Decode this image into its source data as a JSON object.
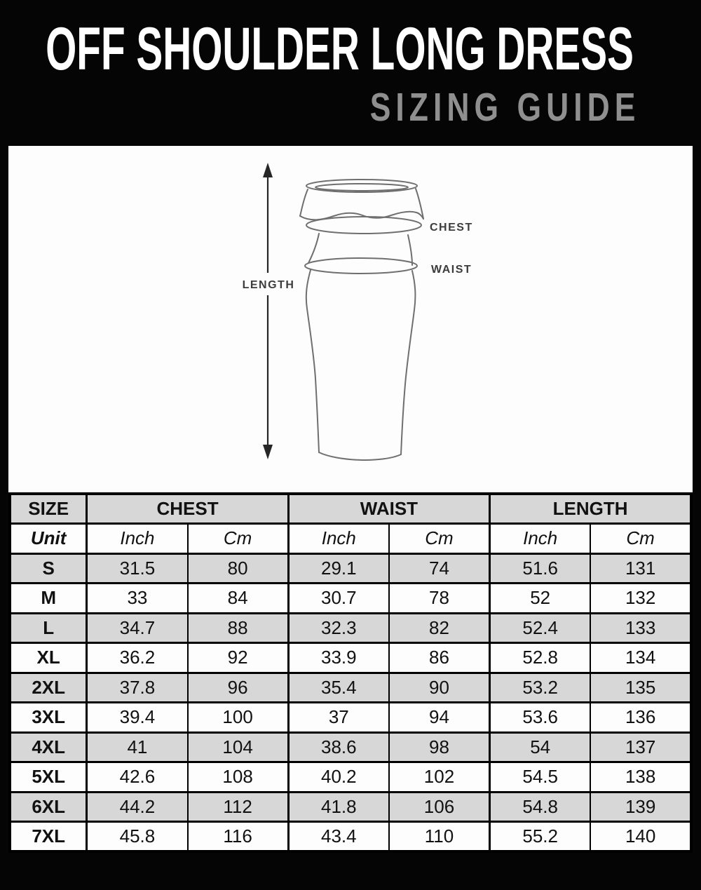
{
  "header": {
    "title": "OFF SHOULDER LONG DRESS",
    "subtitle": "SIZING GUIDE"
  },
  "diagram": {
    "length_label": "LENGTH",
    "chest_label": "CHEST",
    "waist_label": "WAIST"
  },
  "table": {
    "group_headers": [
      "SIZE",
      "CHEST",
      "WAIST",
      "LENGTH"
    ],
    "unit_row": [
      "Unit",
      "Inch",
      "Cm",
      "Inch",
      "Cm",
      "Inch",
      "Cm"
    ],
    "rows": [
      {
        "size": "S",
        "values": [
          "31.5",
          "80",
          "29.1",
          "74",
          "51.6",
          "131"
        ]
      },
      {
        "size": "M",
        "values": [
          "33",
          "84",
          "30.7",
          "78",
          "52",
          "132"
        ]
      },
      {
        "size": "L",
        "values": [
          "34.7",
          "88",
          "32.3",
          "82",
          "52.4",
          "133"
        ]
      },
      {
        "size": "XL",
        "values": [
          "36.2",
          "92",
          "33.9",
          "86",
          "52.8",
          "134"
        ]
      },
      {
        "size": "2XL",
        "values": [
          "37.8",
          "96",
          "35.4",
          "90",
          "53.2",
          "135"
        ]
      },
      {
        "size": "3XL",
        "values": [
          "39.4",
          "100",
          "37",
          "94",
          "53.6",
          "136"
        ]
      },
      {
        "size": "4XL",
        "values": [
          "41",
          "104",
          "38.6",
          "98",
          "54",
          "137"
        ]
      },
      {
        "size": "5XL",
        "values": [
          "42.6",
          "108",
          "40.2",
          "102",
          "54.5",
          "138"
        ]
      },
      {
        "size": "6XL",
        "values": [
          "44.2",
          "112",
          "41.8",
          "106",
          "54.8",
          "139"
        ]
      },
      {
        "size": "7XL",
        "values": [
          "45.8",
          "116",
          "43.4",
          "110",
          "55.2",
          "140"
        ]
      }
    ]
  },
  "colors": {
    "background": "#050505",
    "panel": "#fdfdfd",
    "row_shade": "#d7d7d7",
    "subtitle_gray": "#8f8f8f",
    "sketch_line": "#6f6f6f",
    "text": "#111111"
  }
}
